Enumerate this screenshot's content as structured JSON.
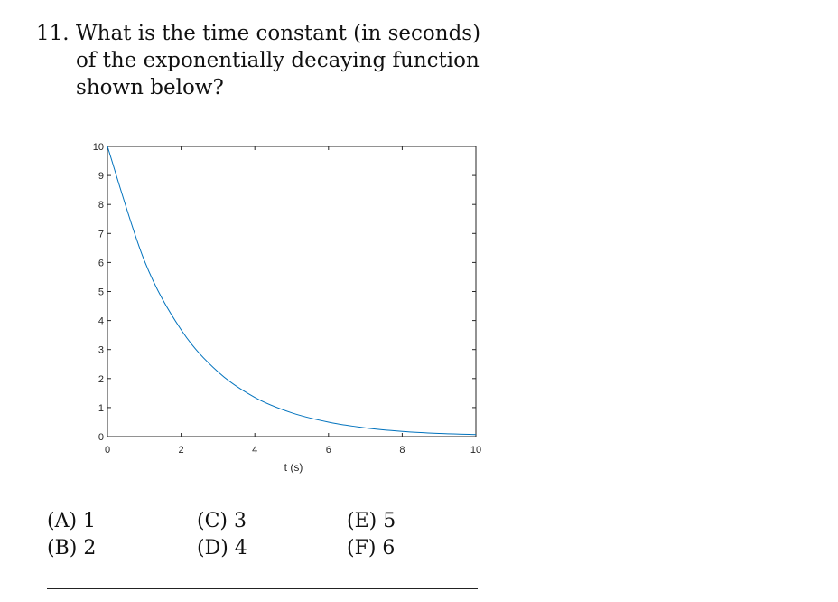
{
  "question": {
    "number": "11.",
    "text": "What is the time constant (in seconds) of the exponentially decaying function shown below?"
  },
  "chart_data": {
    "type": "line",
    "title": "",
    "xlabel": "t (s)",
    "ylabel": "",
    "xlim": [
      0,
      10
    ],
    "ylim": [
      0,
      10
    ],
    "xticks": [
      0,
      2,
      4,
      6,
      8,
      10
    ],
    "yticks": [
      0,
      1,
      2,
      3,
      4,
      5,
      6,
      7,
      8,
      9,
      10
    ],
    "grid": false,
    "line_color": "#0072BD",
    "series": [
      {
        "x": [
          0,
          1,
          2,
          3,
          4,
          5,
          6,
          7,
          8,
          9,
          10
        ],
        "values": [
          10,
          6.07,
          3.68,
          2.23,
          1.35,
          0.82,
          0.5,
          0.3,
          0.18,
          0.11,
          0.07
        ]
      }
    ]
  },
  "choices": [
    [
      "(A) 1",
      "(B) 2"
    ],
    [
      "(C) 3",
      "(D) 4"
    ],
    [
      "(E) 5",
      "(F) 6"
    ]
  ]
}
